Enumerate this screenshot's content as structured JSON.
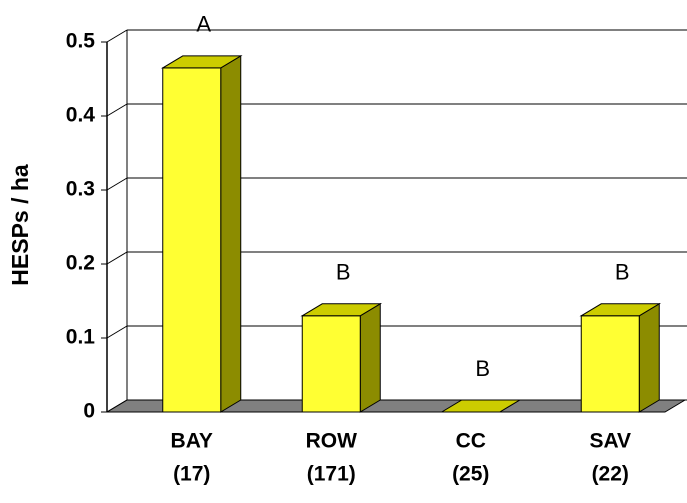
{
  "chart_data": {
    "type": "bar3d",
    "y_label": "HESPs / ha",
    "categories": [
      "BAY",
      "ROW",
      "CC",
      "SAV"
    ],
    "sample_sizes": [
      "(17)",
      "(171)",
      "(25)",
      "(22)"
    ],
    "values": [
      0.465,
      0.13,
      0,
      0.13
    ],
    "annotations": [
      "A",
      "B",
      "B",
      "B"
    ],
    "color": "#ffff33",
    "ylim": [
      0,
      0.5
    ],
    "yticks": [
      0,
      0.1,
      0.2,
      0.3,
      0.4,
      0.5
    ],
    "grid": true
  }
}
